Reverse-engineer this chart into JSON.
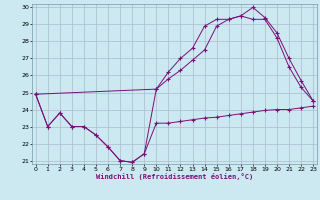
{
  "xlabel": "Windchill (Refroidissement éolien,°C)",
  "bg_color": "#cce8f0",
  "grid_color": "#aabbcc",
  "line_color": "#771177",
  "xlim": [
    0,
    23
  ],
  "ylim": [
    21,
    30
  ],
  "yticks": [
    21,
    22,
    23,
    24,
    25,
    26,
    27,
    28,
    29,
    30
  ],
  "xticks": [
    0,
    1,
    2,
    3,
    4,
    5,
    6,
    7,
    8,
    9,
    10,
    11,
    12,
    13,
    14,
    15,
    16,
    17,
    18,
    19,
    20,
    21,
    22,
    23
  ],
  "series1_x": [
    0,
    1,
    2,
    3,
    4,
    5,
    6,
    7,
    8,
    9,
    10,
    11,
    12,
    13,
    14,
    15,
    16,
    17,
    18,
    19,
    20,
    21,
    22,
    23
  ],
  "series1_y": [
    24.9,
    23.0,
    23.8,
    23.0,
    23.0,
    22.5,
    21.8,
    21.0,
    20.9,
    21.4,
    23.2,
    23.2,
    23.3,
    23.4,
    23.5,
    23.55,
    23.65,
    23.75,
    23.85,
    23.95,
    24.0,
    24.0,
    24.1,
    24.2
  ],
  "series2_x": [
    0,
    1,
    2,
    3,
    4,
    5,
    6,
    7,
    8,
    9,
    10,
    11,
    12,
    13,
    14,
    15,
    16,
    17,
    18,
    19,
    20,
    21,
    22,
    23
  ],
  "series2_y": [
    24.9,
    23.0,
    23.8,
    23.0,
    23.0,
    22.5,
    21.8,
    21.0,
    20.9,
    21.4,
    25.2,
    26.2,
    27.0,
    27.6,
    28.9,
    29.3,
    29.3,
    29.5,
    29.3,
    29.3,
    28.2,
    26.5,
    25.3,
    24.5
  ],
  "series3_x": [
    0,
    10,
    11,
    12,
    13,
    14,
    15,
    16,
    17,
    18,
    19,
    20,
    21,
    22,
    23
  ],
  "series3_y": [
    24.9,
    25.2,
    25.8,
    26.3,
    26.9,
    27.5,
    28.9,
    29.3,
    29.5,
    30.0,
    29.4,
    28.5,
    27.0,
    25.7,
    24.5
  ]
}
